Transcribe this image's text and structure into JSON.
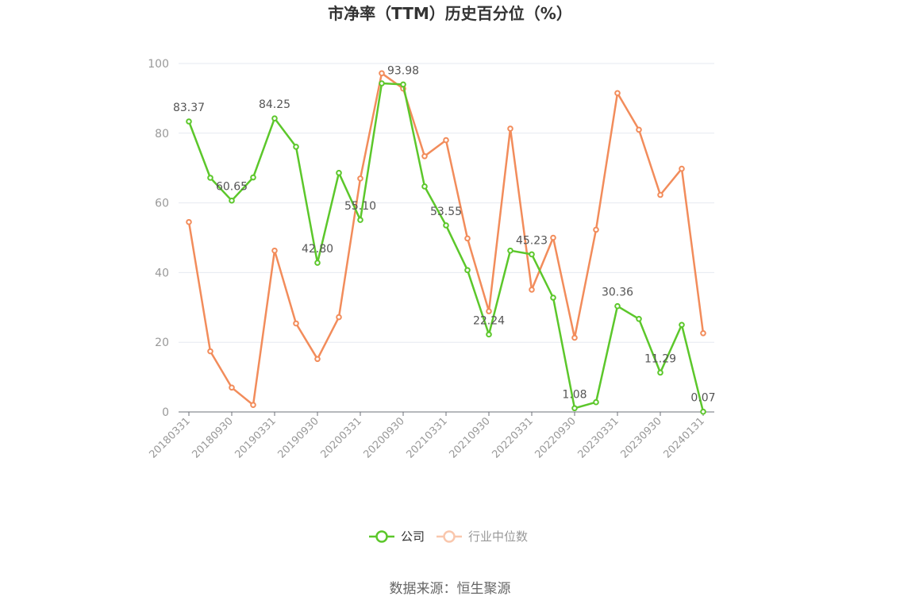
{
  "chart_data": {
    "type": "line",
    "title": "市净率（TTM）历史百分位（%）",
    "ylim": [
      0,
      100
    ],
    "yticks": [
      0,
      20,
      40,
      60,
      80,
      100
    ],
    "grid": true,
    "legend_position": "bottom",
    "x": [
      "20180331",
      "20180630",
      "20180930",
      "20181231",
      "20190331",
      "20190630",
      "20190930",
      "20191231",
      "20200331",
      "20200630",
      "20200930",
      "20201231",
      "20210331",
      "20210630",
      "20210930",
      "20211231",
      "20220331",
      "20220630",
      "20220930",
      "20221231",
      "20230331",
      "20230630",
      "20230930",
      "20231231",
      "20240131"
    ],
    "xtick_labels": [
      "20180331",
      "20180930",
      "20190331",
      "20190930",
      "20200331",
      "20200930",
      "20210331",
      "20210930",
      "20220331",
      "20220930",
      "20230331",
      "20230930",
      "20240131"
    ],
    "series": [
      {
        "name": "公司",
        "color": "#5cc72b",
        "values": [
          83.37,
          67.2,
          60.65,
          67.3,
          84.25,
          76.1,
          42.8,
          68.6,
          55.1,
          94.3,
          93.98,
          64.7,
          53.55,
          40.7,
          22.24,
          46.3,
          45.23,
          32.8,
          1.08,
          2.8,
          30.36,
          26.7,
          11.29,
          25.0,
          0.07
        ],
        "labels": {
          "0": "83.37",
          "2": "60.65",
          "4": "84.25",
          "6": "42.80",
          "8": "55.10",
          "10": "93.98",
          "12": "53.55",
          "14": "22.24",
          "16": "45.23",
          "18": "1.08",
          "20": "30.36",
          "22": "11.29",
          "24": "0.07"
        }
      },
      {
        "name": "行业中位数",
        "color": "#f28c5b",
        "values": [
          54.5,
          17.4,
          7.0,
          2.0,
          46.3,
          25.4,
          15.2,
          27.2,
          67.0,
          97.2,
          92.8,
          73.4,
          78.0,
          49.8,
          28.9,
          81.3,
          35.1,
          50.0,
          21.3,
          52.3,
          91.5,
          81.0,
          62.3,
          69.8,
          22.6
        ]
      }
    ]
  },
  "source_text": "数据来源：恒生聚源"
}
